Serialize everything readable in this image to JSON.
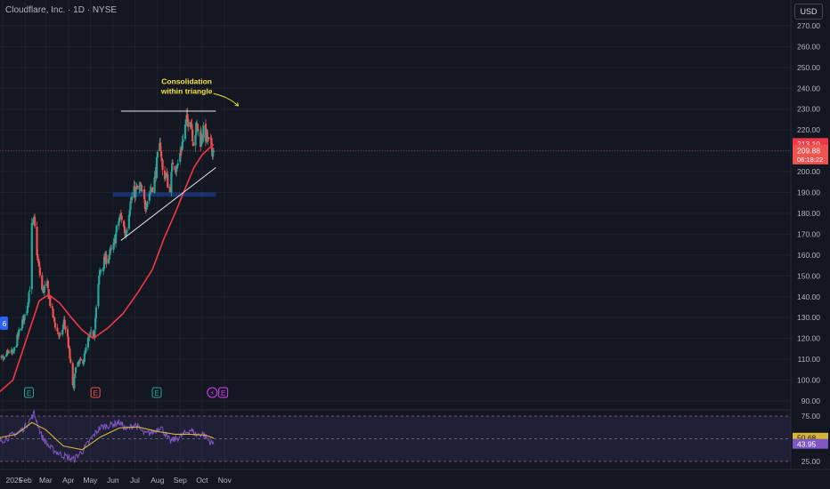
{
  "header": {
    "title": "Cloudflare, Inc. · 1D · NYSE",
    "currency": "USD"
  },
  "colors": {
    "bg": "#131722",
    "up": "#26a69a",
    "down": "#ef5350",
    "ma": "#f23645",
    "rsi": "#7e57c2",
    "rsi_ma": "#d8b33a",
    "annotation": "#f7e43a"
  },
  "chart_data": {
    "type": "candlestick",
    "symbol": "Cloudflare, Inc.",
    "interval": "1D",
    "exchange": "NYSE",
    "y_ticks": [
      90,
      100,
      110,
      120,
      130,
      140,
      150,
      160,
      170,
      180,
      190,
      200,
      210,
      220,
      230,
      240,
      250,
      260,
      270
    ],
    "y_tick_labels": [
      "90.00",
      "100.00",
      "110.00",
      "120.00",
      "130.00",
      "140.00",
      "150.00",
      "160.00",
      "170.00",
      "180.00",
      "190.00",
      "200.00",
      "210.00",
      "220.00",
      "230.00",
      "240.00",
      "250.00",
      "260.00",
      "270.00"
    ],
    "x_labels": [
      "2025",
      "Feb",
      "Mar",
      "Apr",
      "May",
      "Jun",
      "Jul",
      "Aug",
      "Sep",
      "Oct",
      "Nov"
    ],
    "x_label_dates": [
      "2025-01-01",
      "2025-02-01",
      "2025-03-01",
      "2025-04-01",
      "2025-05-01",
      "2025-06-01",
      "2025-07-01",
      "2025-08-01",
      "2025-09-01",
      "2025-10-01",
      "2025-11-01"
    ],
    "close_trend": [
      [
        "2024-12-20",
        108
      ],
      [
        "2025-01-02",
        110
      ],
      [
        "2025-01-10",
        114
      ],
      [
        "2025-01-15",
        112
      ],
      [
        "2025-01-22",
        121
      ],
      [
        "2025-01-28",
        128
      ],
      [
        "2025-02-03",
        134
      ],
      [
        "2025-02-07",
        145
      ],
      [
        "2025-02-10",
        173
      ],
      [
        "2025-02-13",
        176
      ],
      [
        "2025-02-18",
        158
      ],
      [
        "2025-02-24",
        143
      ],
      [
        "2025-03-03",
        145
      ],
      [
        "2025-03-07",
        137
      ],
      [
        "2025-03-12",
        129
      ],
      [
        "2025-03-17",
        123
      ],
      [
        "2025-03-21",
        120
      ],
      [
        "2025-03-26",
        128
      ],
      [
        "2025-03-31",
        120
      ],
      [
        "2025-04-04",
        107
      ],
      [
        "2025-04-08",
        95
      ],
      [
        "2025-04-10",
        105
      ],
      [
        "2025-04-16",
        108
      ],
      [
        "2025-04-22",
        110
      ],
      [
        "2025-04-28",
        119
      ],
      [
        "2025-05-02",
        122
      ],
      [
        "2025-05-06",
        122
      ],
      [
        "2025-05-09",
        134
      ],
      [
        "2025-05-14",
        152
      ],
      [
        "2025-05-20",
        157
      ],
      [
        "2025-05-27",
        160
      ],
      [
        "2025-06-02",
        164
      ],
      [
        "2025-06-06",
        172
      ],
      [
        "2025-06-10",
        178
      ],
      [
        "2025-06-13",
        178
      ],
      [
        "2025-06-18",
        170
      ],
      [
        "2025-06-24",
        184
      ],
      [
        "2025-06-30",
        190
      ],
      [
        "2025-07-08",
        192
      ],
      [
        "2025-07-15",
        184
      ],
      [
        "2025-07-21",
        190
      ],
      [
        "2025-07-28",
        196
      ],
      [
        "2025-08-01",
        206
      ],
      [
        "2025-08-05",
        213
      ],
      [
        "2025-08-08",
        200
      ],
      [
        "2025-08-13",
        198
      ],
      [
        "2025-08-18",
        190
      ],
      [
        "2025-08-22",
        205
      ],
      [
        "2025-08-28",
        202
      ],
      [
        "2025-09-03",
        212
      ],
      [
        "2025-09-09",
        223
      ],
      [
        "2025-09-15",
        227
      ],
      [
        "2025-09-19",
        215
      ],
      [
        "2025-09-24",
        222
      ],
      [
        "2025-09-29",
        215
      ],
      [
        "2025-10-02",
        219
      ],
      [
        "2025-10-07",
        217
      ],
      [
        "2025-10-10",
        213
      ],
      [
        "2025-10-14",
        212
      ],
      [
        "2025-10-16",
        210
      ],
      [
        "2025-10-17",
        209.88
      ]
    ],
    "moving_average": [
      [
        "2024-12-20",
        92
      ],
      [
        "2025-01-15",
        100
      ],
      [
        "2025-02-01",
        118
      ],
      [
        "2025-02-20",
        138
      ],
      [
        "2025-03-05",
        141
      ],
      [
        "2025-03-20",
        137
      ],
      [
        "2025-04-05",
        130
      ],
      [
        "2025-04-20",
        124
      ],
      [
        "2025-05-05",
        120
      ],
      [
        "2025-05-25",
        125
      ],
      [
        "2025-06-15",
        132
      ],
      [
        "2025-07-05",
        142
      ],
      [
        "2025-07-25",
        153
      ],
      [
        "2025-08-10",
        168
      ],
      [
        "2025-08-25",
        180
      ],
      [
        "2025-09-08",
        192
      ],
      [
        "2025-09-20",
        202
      ],
      [
        "2025-10-01",
        208
      ],
      [
        "2025-10-10",
        211
      ],
      [
        "2025-10-17",
        213.1
      ]
    ],
    "lines": {
      "resistance": {
        "from": [
          "2025-06-12",
          229
        ],
        "to": [
          "2025-10-20",
          229
        ]
      },
      "support": {
        "from": [
          "2025-06-12",
          167
        ],
        "to": [
          "2025-10-20",
          202
        ]
      }
    },
    "support_zone": {
      "from": "2025-06-01",
      "to": "2025-10-20",
      "low": 188,
      "high": 190
    },
    "annotation": {
      "line1": "Consolidation",
      "line2": "within triangle",
      "date": "2025-09-10",
      "price": 240
    },
    "price_labels": {
      "ma_value": "213.10",
      "last_price": "209.88",
      "countdown": "06:18:22",
      "left_badge": "6"
    },
    "earnings_markers": [
      {
        "date": "2025-02-06",
        "label": "E"
      },
      {
        "date": "2025-05-08",
        "label": "E"
      },
      {
        "date": "2025-07-31",
        "label": "E"
      },
      {
        "date": "2025-10-30",
        "label": "E"
      }
    ],
    "event_marker": {
      "date": "2025-10-15",
      "label": "⚡"
    },
    "rsi": {
      "ticks": [
        25,
        50,
        75
      ],
      "tick_labels": [
        "25.00",
        "50.00",
        "75.00"
      ],
      "current_value": "43.95",
      "ma_value": "50.68",
      "series": [
        [
          "2024-12-20",
          45
        ],
        [
          "2025-01-10",
          52
        ],
        [
          "2025-01-28",
          60
        ],
        [
          "2025-02-07",
          70
        ],
        [
          "2025-02-13",
          78
        ],
        [
          "2025-02-24",
          52
        ],
        [
          "2025-03-07",
          40
        ],
        [
          "2025-03-21",
          33
        ],
        [
          "2025-04-08",
          27
        ],
        [
          "2025-04-22",
          38
        ],
        [
          "2025-05-02",
          50
        ],
        [
          "2025-05-14",
          62
        ],
        [
          "2025-05-27",
          65
        ],
        [
          "2025-06-10",
          68
        ],
        [
          "2025-06-20",
          60
        ],
        [
          "2025-07-01",
          66
        ],
        [
          "2025-07-15",
          55
        ],
        [
          "2025-07-28",
          58
        ],
        [
          "2025-08-05",
          64
        ],
        [
          "2025-08-18",
          47
        ],
        [
          "2025-09-01",
          52
        ],
        [
          "2025-09-15",
          60
        ],
        [
          "2025-09-24",
          54
        ],
        [
          "2025-10-02",
          56
        ],
        [
          "2025-10-10",
          48
        ],
        [
          "2025-10-17",
          43.95
        ]
      ],
      "ma_series": [
        [
          "2024-12-20",
          50
        ],
        [
          "2025-01-20",
          55
        ],
        [
          "2025-02-10",
          68
        ],
        [
          "2025-03-01",
          60
        ],
        [
          "2025-03-25",
          42
        ],
        [
          "2025-04-20",
          38
        ],
        [
          "2025-05-15",
          52
        ],
        [
          "2025-06-10",
          62
        ],
        [
          "2025-07-05",
          63
        ],
        [
          "2025-08-01",
          58
        ],
        [
          "2025-08-25",
          55
        ],
        [
          "2025-09-15",
          55
        ],
        [
          "2025-10-05",
          54
        ],
        [
          "2025-10-17",
          50.68
        ]
      ]
    }
  }
}
